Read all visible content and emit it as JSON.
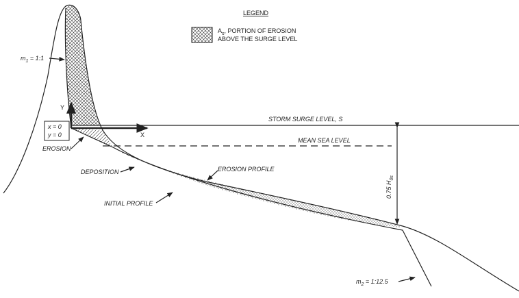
{
  "legend": {
    "title": "LEGEND",
    "symbol": "A",
    "symbol_subscript": "s",
    "line1": ", PORTION OF EROSION",
    "line2": "ABOVE THE SURGE LEVEL"
  },
  "slope_upper": {
    "symbol": "m",
    "subscript": "1",
    "text": " = 1:1"
  },
  "slope_lower": {
    "symbol": "m",
    "subscript": "2",
    "text": " = 1:12.5"
  },
  "axes": {
    "y": "Y",
    "x": "X",
    "origin_x": "x = 0",
    "origin_y": "y = 0"
  },
  "levels": {
    "surge": "STORM SURGE LEVEL, S",
    "mean": "MEAN SEA LEVEL"
  },
  "labels": {
    "erosion": "EROSION",
    "deposition": "DEPOSITION",
    "erosion_profile": "EROSION PROFILE",
    "initial_profile": "INITIAL PROFILE"
  },
  "height": {
    "text": "0.75 H",
    "subscript": "0s"
  }
}
